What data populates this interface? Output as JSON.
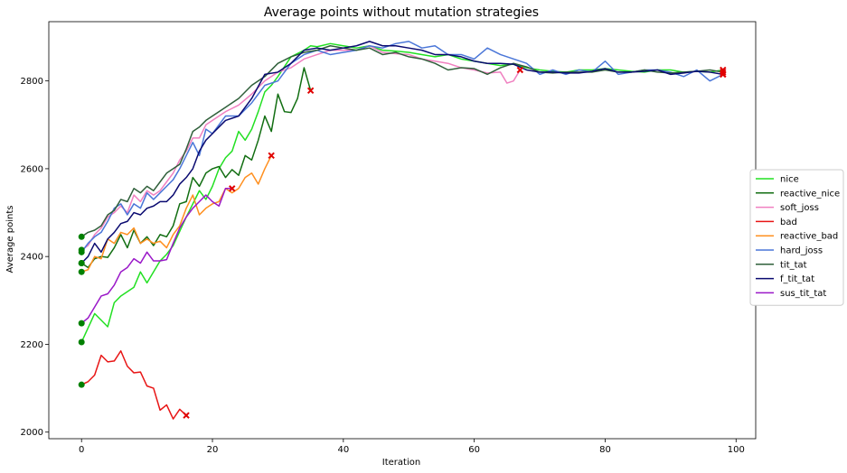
{
  "chart_data": {
    "type": "line",
    "title": "Average points without mutation strategies",
    "xlabel": "Iteration",
    "ylabel": "Average points",
    "xlim": [
      -5,
      103
    ],
    "ylim": [
      1985,
      2935
    ],
    "xticks": [
      0,
      20,
      40,
      60,
      80,
      100
    ],
    "yticks": [
      2000,
      2200,
      2400,
      2600,
      2800
    ],
    "grid": false,
    "legend_position": "right",
    "start_marker_color": "#008000",
    "end_marker_color": "#e00000",
    "series": [
      {
        "name": "nice",
        "color": "#22e022",
        "x": [
          0,
          2,
          4,
          5,
          6,
          8,
          9,
          10,
          12,
          13,
          14,
          16,
          18,
          19,
          20,
          21,
          22,
          23,
          24,
          25,
          26,
          27,
          28,
          29,
          30,
          32,
          34,
          35,
          36,
          38,
          40,
          42,
          44,
          46,
          48,
          50,
          52,
          54,
          56,
          58,
          60,
          62,
          64,
          66,
          68,
          70,
          72,
          74,
          76,
          78,
          80,
          82,
          84,
          86,
          88,
          90,
          92,
          94,
          96,
          98
        ],
        "y": [
          2205,
          2270,
          2240,
          2295,
          2310,
          2330,
          2365,
          2340,
          2390,
          2405,
          2425,
          2490,
          2550,
          2530,
          2560,
          2600,
          2625,
          2640,
          2685,
          2665,
          2690,
          2730,
          2775,
          2790,
          2810,
          2855,
          2870,
          2880,
          2878,
          2885,
          2880,
          2875,
          2880,
          2870,
          2868,
          2865,
          2860,
          2855,
          2860,
          2850,
          2845,
          2840,
          2835,
          2838,
          2830,
          2825,
          2822,
          2820,
          2825,
          2825,
          2828,
          2825,
          2822,
          2820,
          2825,
          2825,
          2820,
          2822,
          2820,
          2825
        ]
      },
      {
        "name": "reactive_nice",
        "color": "#126e12",
        "x": [
          0,
          1,
          2,
          3,
          4,
          5,
          6,
          7,
          8,
          9,
          10,
          11,
          12,
          13,
          14,
          15,
          16,
          17,
          18,
          19,
          20,
          21,
          22,
          23,
          24,
          25,
          26,
          27,
          28,
          29,
          30,
          31,
          32,
          33,
          34,
          35
        ],
        "y": [
          2385,
          2375,
          2395,
          2400,
          2398,
          2420,
          2450,
          2420,
          2460,
          2430,
          2445,
          2425,
          2450,
          2445,
          2470,
          2520,
          2525,
          2580,
          2560,
          2590,
          2600,
          2605,
          2580,
          2598,
          2585,
          2630,
          2620,
          2665,
          2720,
          2685,
          2770,
          2730,
          2728,
          2760,
          2830,
          2778
        ]
      },
      {
        "name": "soft_joss",
        "color": "#f080c0",
        "x": [
          0,
          1,
          2,
          3,
          4,
          5,
          6,
          7,
          8,
          9,
          10,
          11,
          12,
          13,
          14,
          15,
          16,
          17,
          18,
          19,
          20,
          22,
          24,
          26,
          28,
          30,
          32,
          34,
          36,
          38,
          40,
          42,
          44,
          46,
          48,
          50,
          52,
          54,
          56,
          58,
          60,
          62,
          64,
          65,
          66,
          67
        ],
        "y": [
          2415,
          2425,
          2450,
          2465,
          2490,
          2500,
          2515,
          2500,
          2540,
          2525,
          2550,
          2540,
          2550,
          2570,
          2590,
          2620,
          2640,
          2670,
          2670,
          2700,
          2710,
          2730,
          2745,
          2770,
          2800,
          2820,
          2830,
          2850,
          2860,
          2870,
          2870,
          2870,
          2880,
          2865,
          2862,
          2860,
          2850,
          2845,
          2840,
          2830,
          2825,
          2818,
          2820,
          2795,
          2800,
          2825
        ]
      },
      {
        "name": "bad",
        "color": "#e81515",
        "x": [
          0,
          1,
          2,
          3,
          4,
          5,
          6,
          7,
          8,
          9,
          10,
          11,
          12,
          13,
          14,
          15,
          16
        ],
        "y": [
          2108,
          2115,
          2130,
          2175,
          2160,
          2162,
          2185,
          2150,
          2135,
          2137,
          2105,
          2100,
          2050,
          2062,
          2030,
          2052,
          2038
        ]
      },
      {
        "name": "reactive_bad",
        "color": "#ff9020",
        "x": [
          0,
          1,
          2,
          3,
          4,
          5,
          6,
          7,
          8,
          9,
          10,
          11,
          12,
          13,
          14,
          15,
          16,
          17,
          18,
          19,
          20,
          21,
          22,
          23,
          24,
          25,
          26,
          27,
          28,
          29
        ],
        "y": [
          2365,
          2370,
          2400,
          2395,
          2440,
          2430,
          2455,
          2450,
          2465,
          2430,
          2440,
          2430,
          2435,
          2420,
          2450,
          2470,
          2510,
          2540,
          2495,
          2510,
          2520,
          2525,
          2555,
          2545,
          2555,
          2580,
          2590,
          2565,
          2600,
          2630
        ]
      },
      {
        "name": "hard_joss",
        "color": "#4a76d8",
        "x": [
          0,
          1,
          2,
          3,
          4,
          5,
          6,
          7,
          8,
          9,
          10,
          11,
          12,
          13,
          14,
          15,
          16,
          17,
          18,
          19,
          20,
          22,
          24,
          26,
          28,
          30,
          32,
          34,
          36,
          38,
          40,
          42,
          44,
          46,
          48,
          50,
          52,
          54,
          56,
          58,
          60,
          62,
          64,
          66,
          68,
          70,
          72,
          74,
          76,
          78,
          80,
          82,
          84,
          86,
          88,
          90,
          92,
          94,
          96,
          98
        ],
        "y": [
          2410,
          2430,
          2445,
          2455,
          2480,
          2510,
          2520,
          2495,
          2520,
          2510,
          2545,
          2530,
          2545,
          2560,
          2575,
          2600,
          2630,
          2660,
          2630,
          2690,
          2680,
          2720,
          2720,
          2750,
          2790,
          2800,
          2840,
          2860,
          2870,
          2860,
          2865,
          2870,
          2880,
          2875,
          2885,
          2890,
          2875,
          2880,
          2860,
          2860,
          2850,
          2875,
          2860,
          2850,
          2840,
          2815,
          2825,
          2815,
          2825,
          2820,
          2845,
          2815,
          2820,
          2825,
          2825,
          2820,
          2810,
          2825,
          2800,
          2815
        ]
      },
      {
        "name": "tit_tat",
        "color": "#2f5f3a",
        "x": [
          0,
          1,
          2,
          3,
          4,
          5,
          6,
          7,
          8,
          9,
          10,
          11,
          12,
          13,
          14,
          15,
          16,
          17,
          18,
          19,
          20,
          22,
          24,
          26,
          28,
          30,
          32,
          34,
          36,
          38,
          40,
          42,
          44,
          46,
          48,
          50,
          52,
          54,
          56,
          58,
          60,
          62,
          64,
          66,
          68,
          70,
          72,
          74,
          76,
          78,
          80,
          82,
          84,
          86,
          88,
          90,
          92,
          94,
          96,
          98
        ],
        "y": [
          2445,
          2455,
          2460,
          2470,
          2495,
          2505,
          2530,
          2525,
          2555,
          2545,
          2560,
          2550,
          2570,
          2590,
          2600,
          2610,
          2645,
          2685,
          2695,
          2710,
          2720,
          2740,
          2760,
          2790,
          2810,
          2840,
          2855,
          2865,
          2870,
          2880,
          2875,
          2870,
          2875,
          2860,
          2865,
          2855,
          2850,
          2840,
          2825,
          2830,
          2828,
          2815,
          2830,
          2840,
          2832,
          2820,
          2818,
          2820,
          2820,
          2820,
          2825,
          2820,
          2820,
          2825,
          2820,
          2818,
          2820,
          2822,
          2825,
          2820
        ]
      },
      {
        "name": "f_tit_tat",
        "color": "#0a0a70",
        "x": [
          0,
          1,
          2,
          3,
          4,
          5,
          6,
          7,
          8,
          9,
          10,
          11,
          12,
          13,
          14,
          15,
          16,
          17,
          18,
          19,
          20,
          22,
          24,
          26,
          28,
          30,
          32,
          34,
          36,
          38,
          40,
          42,
          44,
          46,
          48,
          50,
          52,
          54,
          56,
          58,
          60,
          62,
          64,
          66,
          68,
          70,
          72,
          74,
          76,
          78,
          80,
          82,
          84,
          86,
          88,
          90,
          92,
          94,
          96,
          98
        ],
        "y": [
          2385,
          2400,
          2430,
          2410,
          2440,
          2455,
          2475,
          2480,
          2500,
          2495,
          2510,
          2515,
          2525,
          2525,
          2540,
          2565,
          2580,
          2600,
          2640,
          2665,
          2680,
          2710,
          2720,
          2760,
          2815,
          2820,
          2840,
          2870,
          2875,
          2870,
          2875,
          2880,
          2890,
          2880,
          2880,
          2875,
          2870,
          2860,
          2860,
          2855,
          2845,
          2840,
          2840,
          2838,
          2825,
          2820,
          2820,
          2818,
          2818,
          2822,
          2828,
          2820,
          2820,
          2822,
          2825,
          2815,
          2818,
          2822,
          2820,
          2815
        ]
      },
      {
        "name": "sus_tit_tat",
        "color": "#9a18c8",
        "x": [
          0,
          1,
          2,
          3,
          4,
          5,
          6,
          7,
          8,
          9,
          10,
          11,
          12,
          13,
          14,
          15,
          16,
          17,
          18,
          19,
          20,
          21,
          22,
          23
        ],
        "y": [
          2248,
          2260,
          2285,
          2310,
          2315,
          2335,
          2365,
          2375,
          2395,
          2385,
          2410,
          2390,
          2390,
          2393,
          2430,
          2465,
          2490,
          2510,
          2525,
          2540,
          2525,
          2515,
          2555,
          2555
        ]
      }
    ]
  }
}
